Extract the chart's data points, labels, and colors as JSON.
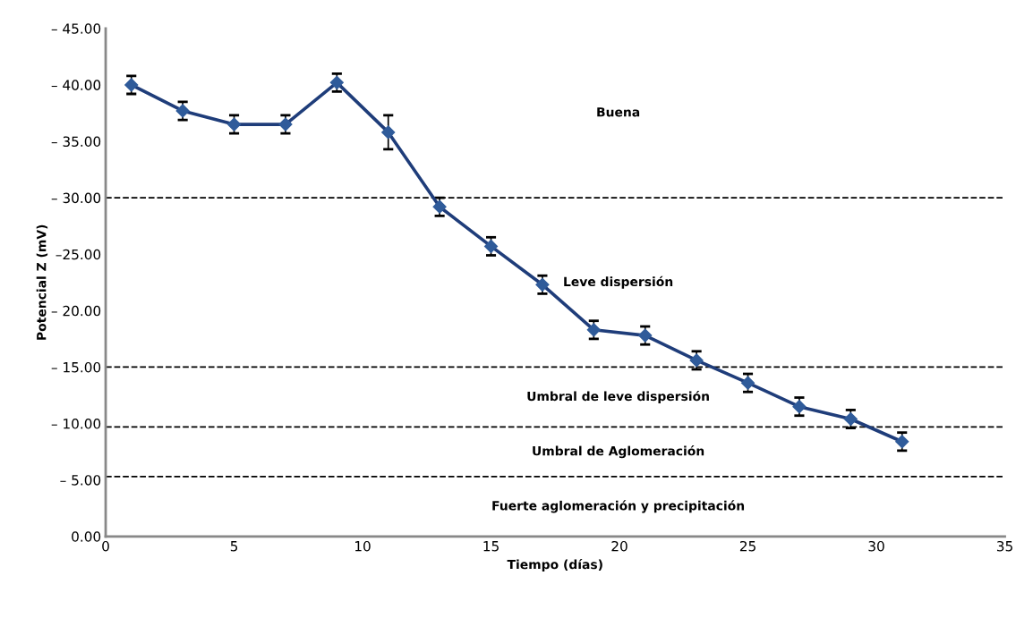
{
  "chart_data": {
    "type": "line",
    "xlabel": "Tiempo (días)",
    "ylabel": "Potencial Z (mV)",
    "x": [
      1,
      3,
      5,
      7,
      9,
      11,
      13,
      15,
      17,
      19,
      21,
      23,
      25,
      27,
      29,
      31
    ],
    "series": [
      {
        "color": "#1f3d7a",
        "values": [
          -40.0,
          -37.7,
          -36.5,
          -36.5,
          -40.2,
          -35.8,
          -29.2,
          -25.7,
          -22.3,
          -18.3,
          -17.8,
          -15.6,
          -13.6,
          -11.5,
          -10.4,
          -8.4
        ],
        "errors": [
          0.8,
          0.8,
          0.8,
          0.8,
          0.8,
          1.5,
          0.8,
          0.8,
          0.8,
          0.8,
          0.8,
          0.8,
          0.8,
          0.8,
          0.8,
          0.8
        ]
      }
    ],
    "marker": "diamond",
    "line_style": "solid",
    "grid": false,
    "legend": false,
    "xlim": [
      0,
      35
    ],
    "xticks": [
      0,
      5,
      10,
      15,
      20,
      25,
      30,
      35
    ],
    "ylim": [
      0,
      -45
    ],
    "yticks": [
      {
        "value": 0,
        "label": "0.00"
      },
      {
        "value": -5,
        "label": "– 5.00"
      },
      {
        "value": -10,
        "label": "– 10.00"
      },
      {
        "value": -15,
        "label": "– 15.00"
      },
      {
        "value": -20,
        "label": "– 20.00"
      },
      {
        "value": -25,
        "label": "–25.00"
      },
      {
        "value": -30,
        "label": "– 30.00"
      },
      {
        "value": -35,
        "label": "– 35.00"
      },
      {
        "value": -40,
        "label": "– 40.00"
      },
      {
        "value": -45,
        "label": "– 45.00"
      }
    ],
    "ref_lines": [
      {
        "axis": "y",
        "value": -30,
        "color": "#000000",
        "line_style": "dashed"
      },
      {
        "axis": "y",
        "value": -15,
        "color": "#000000",
        "line_style": "dashed"
      },
      {
        "axis": "y",
        "value": -9.7,
        "color": "#000000",
        "line_style": "dashed"
      },
      {
        "axis": "y",
        "value": -5.3,
        "color": "#000000",
        "line_style": "dashed"
      }
    ],
    "annotations": [
      "Buena",
      "Leve dispersión",
      "Umbral de leve dispersión",
      "Umbral de Aglomeración",
      "Fuerte aglomeración y precipitación"
    ]
  }
}
